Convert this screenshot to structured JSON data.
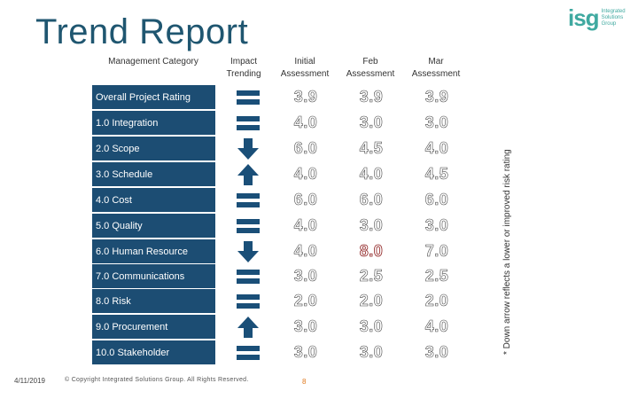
{
  "title": "Trend Report",
  "logo": {
    "mark": "isg",
    "lines": [
      "Integrated",
      "Solutions",
      "Group"
    ]
  },
  "headers": {
    "category": "Management Category",
    "impact": "Impact Trending",
    "initial": "Initial Assessment",
    "feb": "Feb Assessment",
    "mar": "Mar Assessment"
  },
  "rows": [
    {
      "label": "Overall Project Rating",
      "trend": "equal",
      "initial": "3.9",
      "feb": "3.9",
      "mar": "3.9"
    },
    {
      "label": "1.0 Integration",
      "trend": "equal",
      "initial": "4.0",
      "feb": "3.0",
      "mar": "3.0"
    },
    {
      "label": "2.0 Scope",
      "trend": "down",
      "initial": "6.0",
      "feb": "4.5",
      "mar": "4.0"
    },
    {
      "label": "3.0 Schedule",
      "trend": "up",
      "initial": "4.0",
      "feb": "4.0",
      "mar": "4.5"
    },
    {
      "label": "4.0 Cost",
      "trend": "equal",
      "initial": "6.0",
      "feb": "6.0",
      "mar": "6.0"
    },
    {
      "label": "5.0 Quality",
      "trend": "equal",
      "initial": "4.0",
      "feb": "3.0",
      "mar": "3.0"
    },
    {
      "label": "6.0 Human Resource",
      "trend": "down",
      "initial": "4.0",
      "feb": "8.0",
      "mar": "7.0"
    },
    {
      "label": "7.0 Communications",
      "trend": "equal",
      "initial": "3.0",
      "feb": "2.5",
      "mar": "2.5"
    },
    {
      "label": "8.0 Risk",
      "trend": "equal",
      "initial": "2.0",
      "feb": "2.0",
      "mar": "2.0"
    },
    {
      "label": "9.0 Procurement",
      "trend": "up",
      "initial": "3.0",
      "feb": "3.0",
      "mar": "4.0"
    },
    {
      "label": "10.0 Stakeholder",
      "trend": "equal",
      "initial": "3.0",
      "feb": "3.0",
      "mar": "3.0"
    }
  ],
  "side_note": "* Down arrow reflects a lower or improved risk rating",
  "footer": {
    "date": "4/11/2019",
    "copyright": "© Copyright Integrated Solutions Group. All Rights Reserved.",
    "page": "8"
  },
  "colors": {
    "title": "#1f5670",
    "row_band": "#1c4d73",
    "icon": "#1a4f78",
    "logo": "#3fa9a0",
    "accent_red": "#8b1a1a"
  }
}
